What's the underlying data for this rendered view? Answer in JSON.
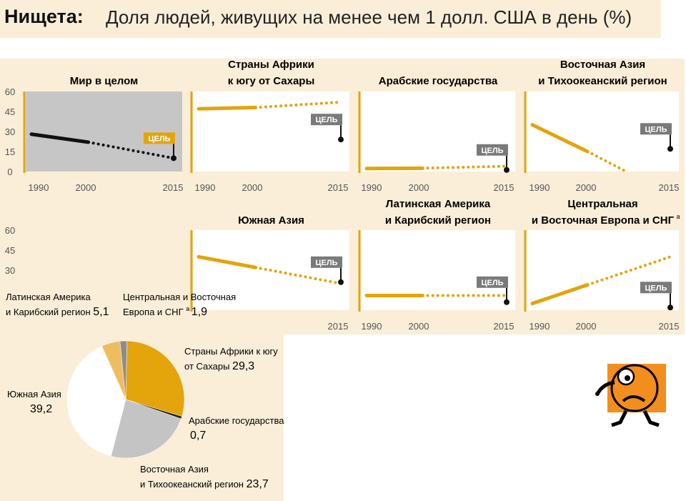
{
  "title": {
    "bold": "Нищета:",
    "rest": "Доля людей, живущих на менее чем 1 долл. США в день (%)"
  },
  "colors": {
    "accent": "#e3a40c",
    "panel_bg": "#faeed8",
    "world_plot_bg": "#c6c6c6",
    "goal_flag": "#7a7a7a",
    "pie_sub_saharan": "#e3a40c",
    "pie_east_asia": "#c4c4c4",
    "pie_south_asia": "#ffffff",
    "pie_latin": "#edbd60",
    "pie_cis": "#8c8c8c",
    "pie_arab": "#222222"
  },
  "chart_data": [
    {
      "type": "line",
      "title": "Мир в целом",
      "x_ticks": [
        "1990",
        "2000",
        "2015"
      ],
      "y_ticks": [
        "60",
        "45",
        "30",
        "15",
        "0"
      ],
      "ylim": [
        0,
        60
      ],
      "goal_label": "ЦЕЛЬ",
      "series": [
        {
          "x": [
            1990,
            2000
          ],
          "y": [
            28,
            22
          ],
          "style": "solid"
        },
        {
          "x": [
            2000,
            2015
          ],
          "y": [
            22,
            10
          ],
          "style": "dotted"
        }
      ],
      "goal": {
        "x": 2015,
        "y": 10
      }
    },
    {
      "type": "line",
      "title": "Страны Африки к югу от Сахары",
      "x_ticks": [
        "1990",
        "2000",
        "2015"
      ],
      "ylim": [
        0,
        60
      ],
      "goal_label": "ЦЕЛЬ",
      "series": [
        {
          "x": [
            1990,
            2000
          ],
          "y": [
            47,
            48
          ],
          "style": "solid"
        },
        {
          "x": [
            2000,
            2015
          ],
          "y": [
            48,
            52
          ],
          "style": "dotted"
        }
      ],
      "goal": {
        "x": 2015,
        "y": 24
      }
    },
    {
      "type": "line",
      "title": "Арабские государства",
      "x_ticks": [
        "1990",
        "2000",
        "2015"
      ],
      "ylim": [
        0,
        60
      ],
      "goal_label": "ЦЕЛЬ",
      "series": [
        {
          "x": [
            1990,
            2000
          ],
          "y": [
            2.3,
            2.5
          ],
          "style": "solid"
        },
        {
          "x": [
            2000,
            2015
          ],
          "y": [
            2.5,
            4
          ],
          "style": "dotted"
        }
      ],
      "goal": {
        "x": 2015,
        "y": 1.2
      }
    },
    {
      "type": "line",
      "title": "Восточная Азия и Тихоокеанский регион",
      "x_ticks": [
        "1990",
        "2000",
        "2015"
      ],
      "ylim": [
        0,
        60
      ],
      "goal_label": "ЦЕЛЬ",
      "series": [
        {
          "x": [
            1990,
            2000
          ],
          "y": [
            35,
            15
          ],
          "style": "solid"
        },
        {
          "x": [
            2000,
            2007
          ],
          "y": [
            15,
            0
          ],
          "style": "dotted"
        }
      ],
      "goal": {
        "x": 2015,
        "y": 17
      }
    },
    {
      "type": "line",
      "title": "Южная Азия",
      "x_ticks": [
        "2015"
      ],
      "y_ticks": [
        "60",
        "45",
        "30"
      ],
      "ylim": [
        0,
        60
      ],
      "goal_label": "ЦЕЛЬ",
      "series": [
        {
          "x": [
            1990,
            2000
          ],
          "y": [
            40,
            32
          ],
          "style": "solid"
        },
        {
          "x": [
            2000,
            2015
          ],
          "y": [
            32,
            20
          ],
          "style": "dotted"
        }
      ],
      "goal": {
        "x": 2015,
        "y": 21
      }
    },
    {
      "type": "line",
      "title": "Латинская Америка и Карибский регион",
      "x_ticks": [
        "1990",
        "2000",
        "2015"
      ],
      "ylim": [
        0,
        60
      ],
      "goal_label": "ЦЕЛЬ",
      "series": [
        {
          "x": [
            1990,
            2000
          ],
          "y": [
            11,
            11
          ],
          "style": "solid"
        },
        {
          "x": [
            2000,
            2015
          ],
          "y": [
            11,
            11
          ],
          "style": "dotted"
        }
      ],
      "goal": {
        "x": 2015,
        "y": 6
      }
    },
    {
      "type": "line",
      "title": "Центральная и Восточная Европа и СНГ",
      "title_sup": "a",
      "x_ticks": [
        "1990",
        "2000",
        "2015"
      ],
      "ylim": [
        0,
        60
      ],
      "goal_label": "ЦЕЛЬ",
      "series": [
        {
          "x": [
            1990,
            2000
          ],
          "y": [
            5,
            19
          ],
          "style": "solid"
        },
        {
          "x": [
            2000,
            2015
          ],
          "y": [
            19,
            40
          ],
          "style": "dotted"
        }
      ],
      "goal": {
        "x": 2015,
        "y": 2
      }
    },
    {
      "type": "pie",
      "slices": [
        {
          "label": "Страны Африки к югу от Сахары",
          "value": 29.3,
          "value_text": "29,3",
          "color": "#e3a40c"
        },
        {
          "label": "Арабские государства",
          "value": 0.7,
          "value_text": "0,7",
          "color": "#222222"
        },
        {
          "label": "Восточная Азия и Тихоокеанский регион",
          "value": 23.7,
          "value_text": "23,7",
          "color": "#c4c4c4"
        },
        {
          "label": "Южная Азия",
          "value": 39.2,
          "value_text": "39,2",
          "color": "#ffffff"
        },
        {
          "label": "Латинская Америка и Карибский регион",
          "value": 5.1,
          "value_text": "5,1",
          "color": "#edbd60"
        },
        {
          "label": "Центральная и Восточная Европа и СНГ",
          "label_sup": "a",
          "value": 1.9,
          "value_text": "1,9",
          "color": "#8c8c8c"
        }
      ]
    }
  ]
}
